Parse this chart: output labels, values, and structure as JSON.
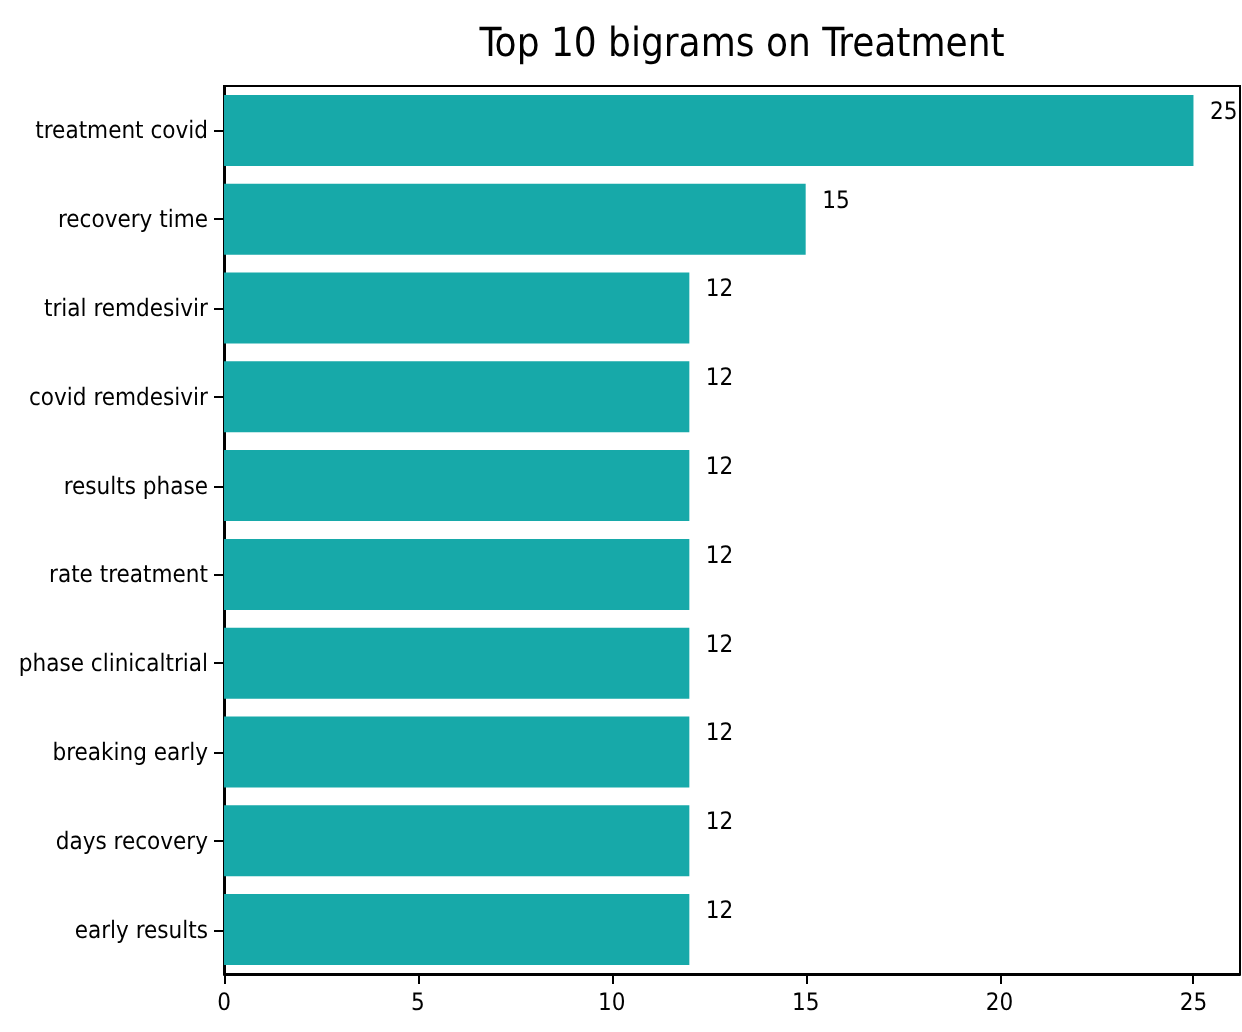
{
  "chart_data": {
    "type": "bar",
    "orientation": "horizontal",
    "title": "Top 10 bigrams on Treatment",
    "categories": [
      "treatment covid",
      "recovery time",
      "trial remdesivir",
      "covid remdesivir",
      "results phase",
      "rate treatment",
      "phase clinicaltrial",
      "breaking early",
      "days recovery",
      "early results"
    ],
    "values": [
      25,
      15,
      12,
      12,
      12,
      12,
      12,
      12,
      12,
      12
    ],
    "color": "#17a9a9",
    "xlim": [
      0,
      26.2
    ],
    "xticks": [
      0,
      5,
      10,
      15,
      20,
      25
    ],
    "data_labels": true,
    "grid": false
  }
}
